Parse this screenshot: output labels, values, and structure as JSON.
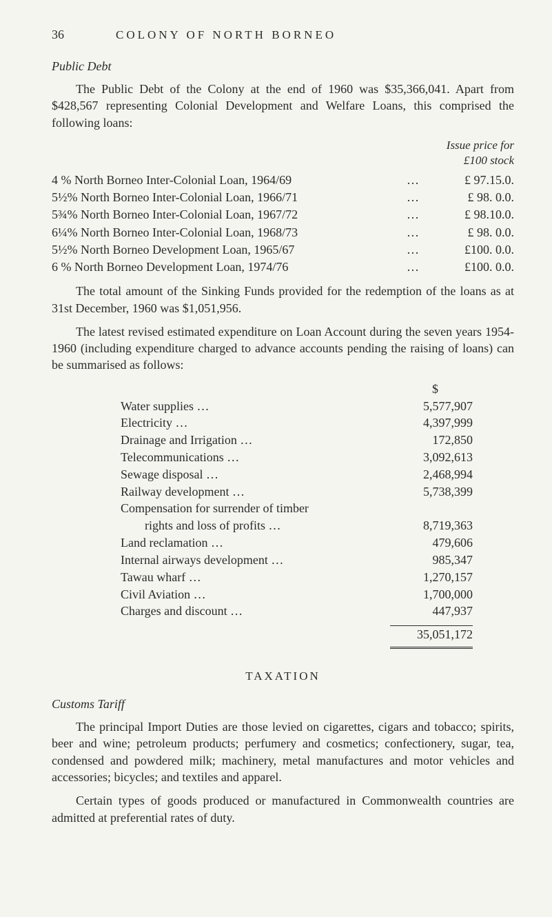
{
  "page_number": "36",
  "running_title": "COLONY OF NORTH BORNEO",
  "public_debt": {
    "heading": "Public Debt",
    "para1": "The Public Debt of the Colony at the end of 1960 was $35,366,041. Apart from $428,567 representing Colonial Development and Welfare Loans, this comprised the following loans:",
    "issue_header_line1": "Issue price for",
    "issue_header_line2": "£100 stock",
    "loans": [
      {
        "desc": "4  % North Borneo Inter-Colonial Loan, 1964/69",
        "price": "£ 97.15.0."
      },
      {
        "desc": "5½% North Borneo Inter-Colonial Loan, 1966/71",
        "price": "£ 98. 0.0."
      },
      {
        "desc": "5¾% North Borneo Inter-Colonial Loan, 1967/72",
        "price": "£ 98.10.0."
      },
      {
        "desc": "6¼% North Borneo Inter-Colonial Loan, 1968/73",
        "price": "£ 98. 0.0."
      },
      {
        "desc": "5½% North Borneo Development Loan, 1965/67",
        "price": "£100. 0.0."
      },
      {
        "desc": "6  % North Borneo Development Loan, 1974/76",
        "price": "£100. 0.0."
      }
    ],
    "para2": "The total amount of the Sinking Funds provided for the redemption of the loans as at 31st December, 1960 was $1,051,956.",
    "para3": "The latest revised estimated expenditure on Loan Account during the seven years 1954-1960 (including expenditure charged to advance accounts pending the raising of loans) can be summarised as follows:",
    "currency_header": "$",
    "expenditures": [
      {
        "label": "Water supplies",
        "value": "5,577,907"
      },
      {
        "label": "Electricity",
        "value": "4,397,999"
      },
      {
        "label": "Drainage and Irrigation",
        "value": "172,850"
      },
      {
        "label": "Telecommunications",
        "value": "3,092,613"
      },
      {
        "label": "Sewage disposal",
        "value": "2,468,994"
      },
      {
        "label": "Railway development",
        "value": "5,738,399"
      },
      {
        "label": "Compensation for surrender of timber",
        "value": ""
      },
      {
        "label": "rights and loss of profits …",
        "value": "8,719,363",
        "indent": true
      },
      {
        "label": "Land reclamation …",
        "value": "479,606"
      },
      {
        "label": "Internal airways development",
        "value": "985,347"
      },
      {
        "label": "Tawau wharf",
        "value": "1,270,157"
      },
      {
        "label": "Civil Aviation",
        "value": "1,700,000"
      },
      {
        "label": "Charges and discount",
        "value": "447,937"
      }
    ],
    "total": "35,051,172"
  },
  "taxation": {
    "title": "TAXATION",
    "heading": "Customs Tariff",
    "para1": "The principal Import Duties are those levied on cigarettes, cigars and tobacco; spirits, beer and wine; petroleum products; perfumery and cosmetics; confectionery, sugar, tea, condensed and powdered milk; machinery, metal manufactures and motor vehicles and accessories; bicycles; and textiles and apparel.",
    "para2": "Certain types of goods produced or manufactured in Commonwealth countries are admitted at preferential rates of duty."
  },
  "colors": {
    "background": "#f5f5f0",
    "text": "#2a2a2a"
  }
}
